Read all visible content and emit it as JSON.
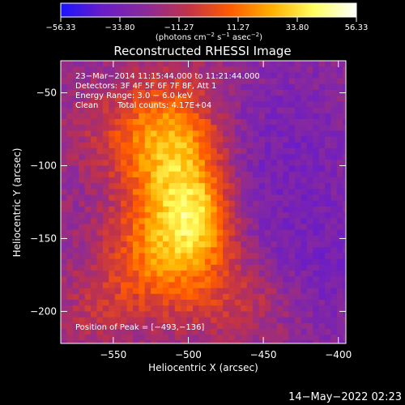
{
  "chart_data": {
    "type": "heatmap",
    "title": "Reconstructed RHESSI Image",
    "xlabel": "Heliocentric X (arcsec)",
    "ylabel": "Heliocentric Y (arcsec)",
    "xlim": [
      -585,
      -395
    ],
    "ylim": [
      -222,
      -28
    ],
    "xticks": [
      -550,
      -500,
      -450,
      -400
    ],
    "yticks": [
      -50,
      -100,
      -150,
      -200
    ],
    "colorbar": {
      "min": -56.33,
      "max": 56.33,
      "tick_values": [
        -56.33,
        -33.8,
        -11.27,
        11.27,
        33.8,
        56.33
      ],
      "tick_labels": [
        "−56.33",
        "−33.80",
        "−11.27",
        "11.27",
        "33.80",
        "56.33"
      ],
      "unit_base": "(photons cm",
      "unit_exp1": "−2",
      "unit_mid": " s",
      "unit_exp2": "−1",
      "unit_mid2": " asec",
      "unit_exp3": "−2",
      "unit_end": ")",
      "colors": [
        "#1a14ff",
        "#6a1cc8",
        "#8a2a9a",
        "#c0324a",
        "#ff5a00",
        "#ffb000",
        "#ffff60",
        "#ffffff"
      ]
    },
    "annotations": {
      "line1": "23−Mar−2014 11:15:44.000 to 11:21:44.000",
      "line2": "Detectors: 3F 4F 5F 6F 7F 8F, Att 1",
      "line3": "Energy Range: 3.0 − 6.0 keV",
      "line4_label": "Clean",
      "line4_counts": "Total counts: 4.17E+04",
      "peak_text": "Position of Peak = [−493,−136]"
    },
    "peak": [
      -493,
      -136
    ],
    "sources": [
      {
        "x": -510,
        "y": -100,
        "sx": 22,
        "sy": 38,
        "amp": 44
      },
      {
        "x": -493,
        "y": -136,
        "sx": 16,
        "sy": 22,
        "amp": 28
      },
      {
        "x": -520,
        "y": -160,
        "sx": 26,
        "sy": 26,
        "amp": 30
      },
      {
        "x": -535,
        "y": -75,
        "sx": 30,
        "sy": 25,
        "amp": 18
      },
      {
        "x": -470,
        "y": -190,
        "sx": 30,
        "sy": 20,
        "amp": 15
      },
      {
        "x": -560,
        "y": -195,
        "sx": 20,
        "sy": 20,
        "amp": 12
      },
      {
        "x": -440,
        "y": -100,
        "sx": 40,
        "sy": 50,
        "amp": -12
      },
      {
        "x": -410,
        "y": -180,
        "sx": 25,
        "sy": 30,
        "amp": -10
      }
    ],
    "background": -22
  },
  "footer": {
    "timestamp": "14−May−2022 02:23"
  }
}
